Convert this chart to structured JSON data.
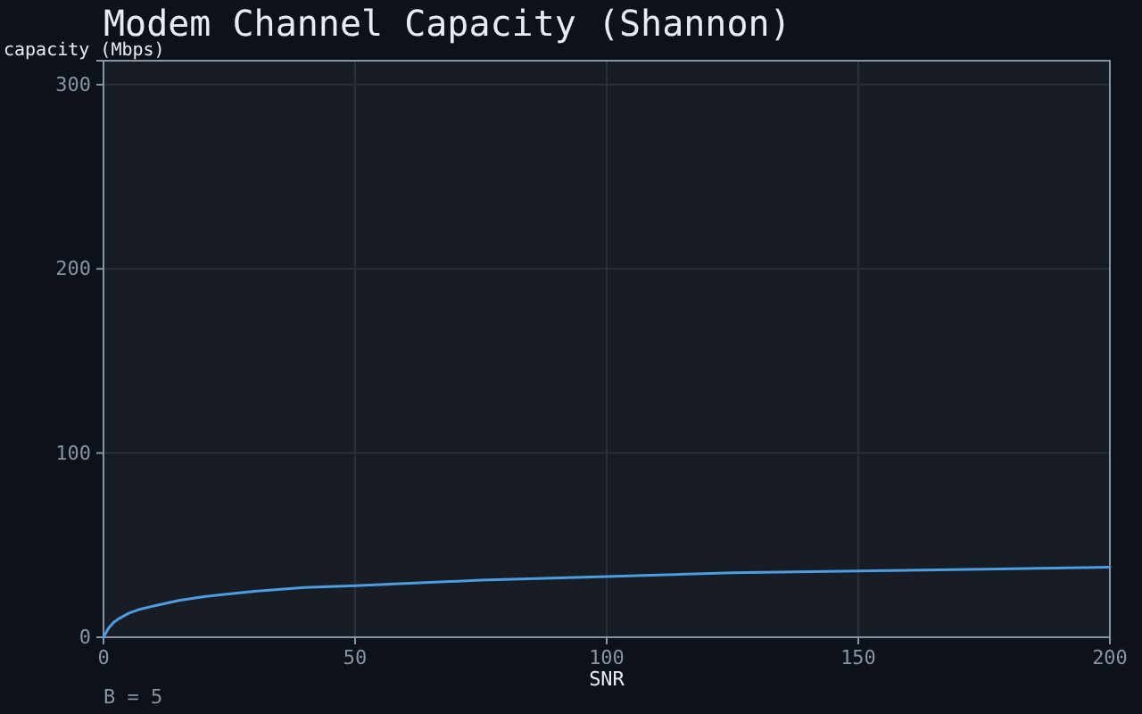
{
  "chart_data": {
    "type": "line",
    "title": "Modem Channel Capacity (Shannon)",
    "xlabel": "SNR",
    "ylabel": "capacity (Mbps)",
    "annotations": [
      "B = 5"
    ],
    "x": [
      0,
      1,
      2,
      3,
      5,
      7,
      10,
      15,
      20,
      30,
      40,
      50,
      75,
      100,
      125,
      150,
      175,
      200
    ],
    "series": [
      {
        "color": "#4d9de0",
        "values": [
          0,
          5,
          8,
          10,
          13,
          15,
          17,
          20,
          22,
          25,
          27,
          28,
          31,
          33,
          35,
          36,
          37,
          38
        ]
      }
    ],
    "xlim": [
      0,
      200
    ],
    "xticks": [
      0,
      50,
      100,
      150,
      200
    ],
    "ylim": [
      0,
      313
    ],
    "yticks": [
      0,
      100,
      200,
      300
    ],
    "grid": true,
    "marker": "none",
    "line_style": "solid"
  }
}
